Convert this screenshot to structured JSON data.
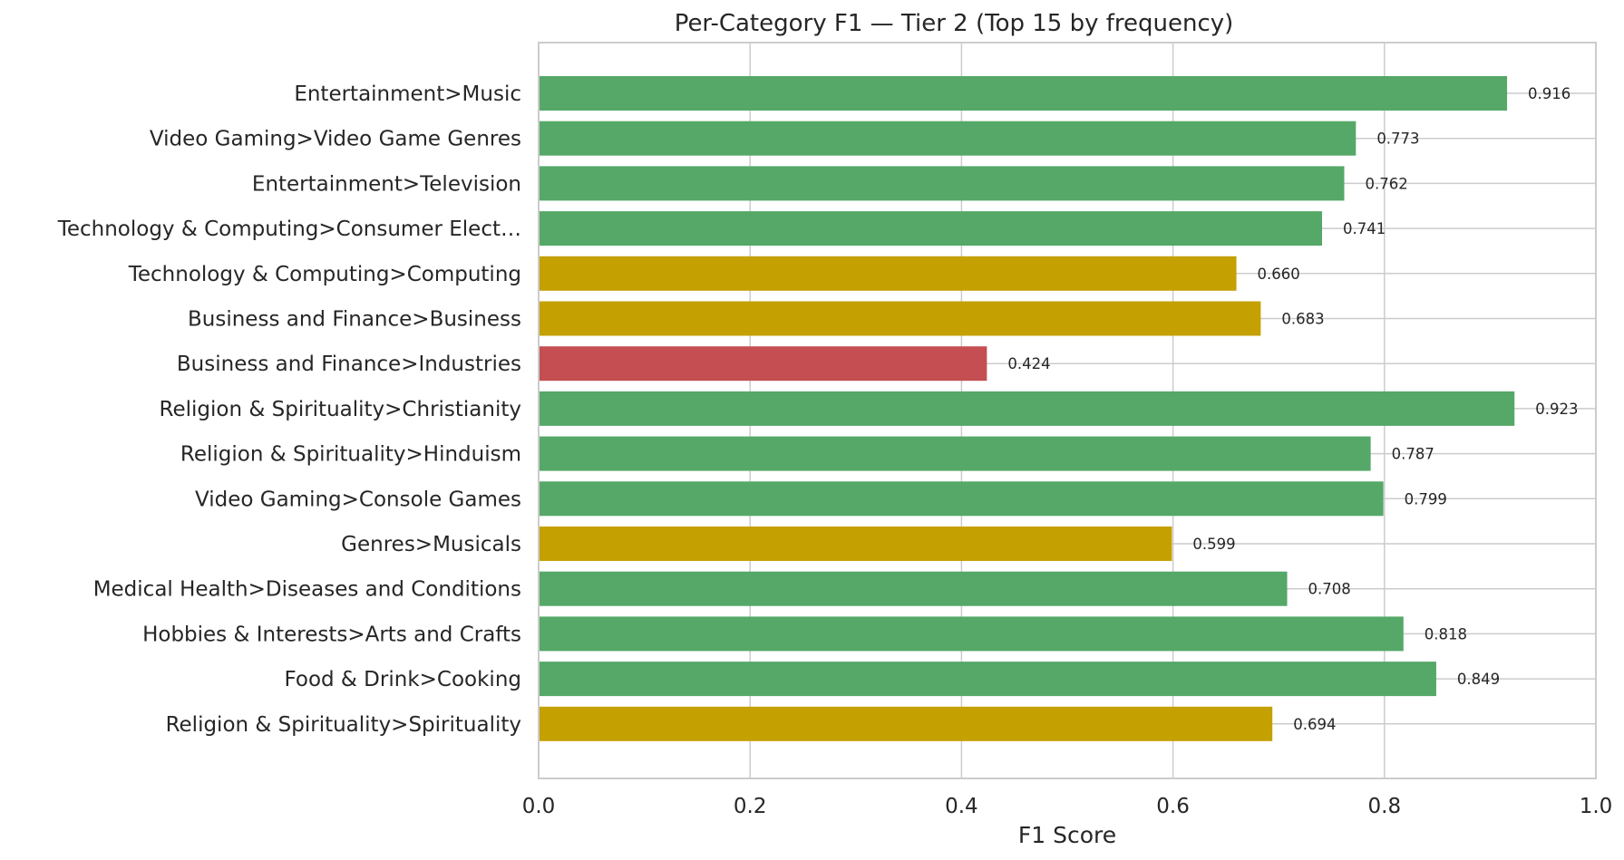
{
  "chart_data": {
    "type": "bar",
    "orientation": "horizontal",
    "title": "Per-Category F1 — Tier 2 (Top 15 by frequency)",
    "xlabel": "F1 Score",
    "ylabel": "",
    "xlim": [
      0,
      1
    ],
    "xticks": [
      "0.0",
      "0.2",
      "0.4",
      "0.6",
      "0.8",
      "1.0"
    ],
    "grid": true,
    "categories": [
      "Entertainment>Music",
      "Video Gaming>Video Game Genres",
      "Entertainment>Television",
      "Technology & Computing>Consumer Elect…",
      "Technology & Computing>Computing",
      "Business and Finance>Business",
      "Business and Finance>Industries",
      "Religion & Spirituality>Christianity",
      "Religion & Spirituality>Hinduism",
      "Video Gaming>Console Games",
      "Genres>Musicals",
      "Medical Health>Diseases and Conditions",
      "Hobbies & Interests>Arts and Crafts",
      "Food & Drink>Cooking",
      "Religion & Spirituality>Spirituality"
    ],
    "values": [
      0.916,
      0.773,
      0.762,
      0.741,
      0.66,
      0.683,
      0.424,
      0.923,
      0.787,
      0.799,
      0.599,
      0.708,
      0.818,
      0.849,
      0.694
    ],
    "value_labels": [
      "0.916",
      "0.773",
      "0.762",
      "0.741",
      "0.660",
      "0.683",
      "0.424",
      "0.923",
      "0.787",
      "0.799",
      "0.599",
      "0.708",
      "0.818",
      "0.849",
      "0.694"
    ],
    "bar_colors": [
      "#55a868",
      "#55a868",
      "#55a868",
      "#55a868",
      "#c4a000",
      "#c4a000",
      "#c44e52",
      "#55a868",
      "#55a868",
      "#55a868",
      "#c4a000",
      "#55a868",
      "#55a868",
      "#55a868",
      "#c4a000"
    ]
  }
}
